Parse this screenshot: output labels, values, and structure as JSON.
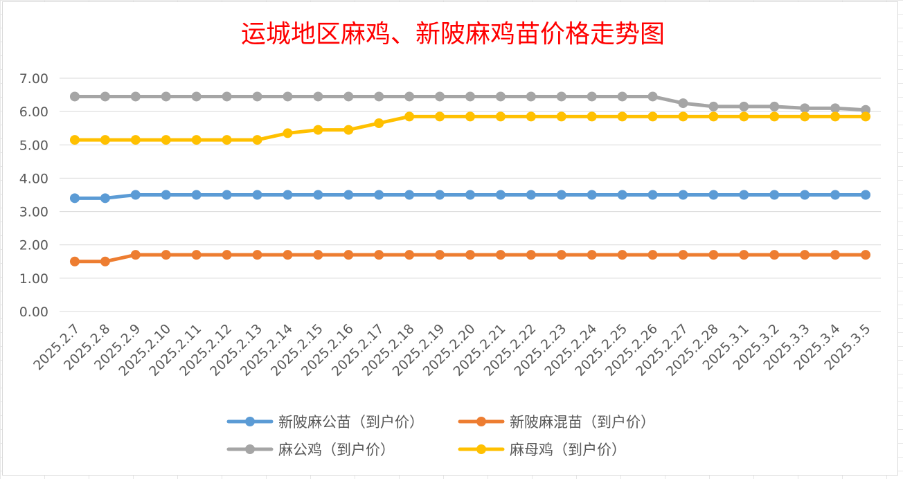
{
  "chart_data": {
    "type": "line",
    "title": "运城地区麻鸡、新陂麻鸡苗价格走势图",
    "xlabel": "",
    "ylabel": "",
    "ylim": [
      0,
      7
    ],
    "y_ticks": [
      "0.00",
      "1.00",
      "2.00",
      "3.00",
      "4.00",
      "5.00",
      "6.00",
      "7.00"
    ],
    "grid": true,
    "legend_position": "bottom",
    "categories": [
      "2025.2.7",
      "2025.2.8",
      "2025.2.9",
      "2025.2.10",
      "2025.2.11",
      "2025.2.12",
      "2025.2.13",
      "2025.2.14",
      "2025.2.15",
      "2025.2.16",
      "2025.2.17",
      "2025.2.18",
      "2025.2.19",
      "2025.2.20",
      "2025.2.21",
      "2025.2.22",
      "2025.2.23",
      "2025.2.24",
      "2025.2.25",
      "2025.2.26",
      "2025.2.27",
      "2025.2.28",
      "2025.3.1",
      "2025.3.2",
      "2025.3.3",
      "2025.3.4",
      "2025.3.5"
    ],
    "series": [
      {
        "name": "新陂麻公苗（到户价）",
        "color": "#5b9bd5",
        "values": [
          3.4,
          3.4,
          3.5,
          3.5,
          3.5,
          3.5,
          3.5,
          3.5,
          3.5,
          3.5,
          3.5,
          3.5,
          3.5,
          3.5,
          3.5,
          3.5,
          3.5,
          3.5,
          3.5,
          3.5,
          3.5,
          3.5,
          3.5,
          3.5,
          3.5,
          3.5,
          3.5
        ]
      },
      {
        "name": "新陂麻混苗（到户价）",
        "color": "#ed7d31",
        "values": [
          1.5,
          1.5,
          1.7,
          1.7,
          1.7,
          1.7,
          1.7,
          1.7,
          1.7,
          1.7,
          1.7,
          1.7,
          1.7,
          1.7,
          1.7,
          1.7,
          1.7,
          1.7,
          1.7,
          1.7,
          1.7,
          1.7,
          1.7,
          1.7,
          1.7,
          1.7,
          1.7
        ]
      },
      {
        "name": "麻公鸡（到户价）",
        "color": "#a5a5a5",
        "values": [
          6.45,
          6.45,
          6.45,
          6.45,
          6.45,
          6.45,
          6.45,
          6.45,
          6.45,
          6.45,
          6.45,
          6.45,
          6.45,
          6.45,
          6.45,
          6.45,
          6.45,
          6.45,
          6.45,
          6.45,
          6.25,
          6.15,
          6.15,
          6.15,
          6.1,
          6.1,
          6.05
        ]
      },
      {
        "name": "麻母鸡（到户价）",
        "color": "#ffc000",
        "values": [
          5.15,
          5.15,
          5.15,
          5.15,
          5.15,
          5.15,
          5.15,
          5.35,
          5.45,
          5.45,
          5.65,
          5.85,
          5.85,
          5.85,
          5.85,
          5.85,
          5.85,
          5.85,
          5.85,
          5.85,
          5.85,
          5.85,
          5.85,
          5.85,
          5.85,
          5.85,
          5.85
        ]
      }
    ]
  }
}
